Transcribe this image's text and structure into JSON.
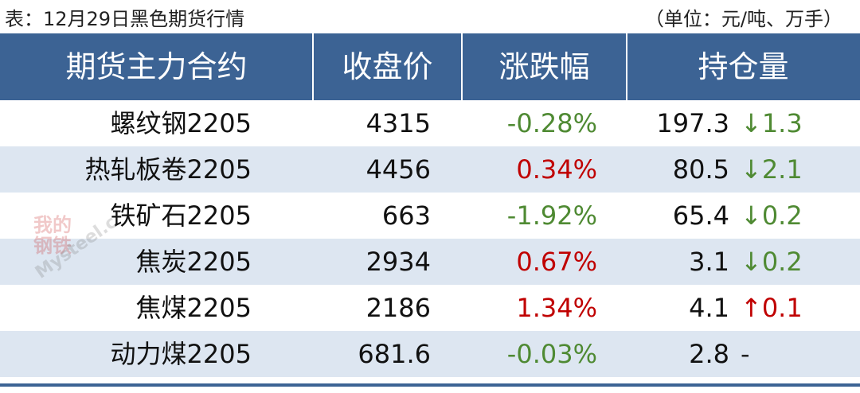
{
  "caption": {
    "title": "表：12月29日黑色期货行情",
    "unit": "（单位：元/吨、万手）"
  },
  "watermark": {
    "stamp": "我的钢铁",
    "site": "Mysteel.c"
  },
  "table": {
    "columns": [
      "期货主力合约",
      "收盘价",
      "涨跌幅",
      "持仓量"
    ],
    "rows": [
      {
        "name": "螺纹钢2205",
        "price": "4315",
        "change": "-0.28%",
        "change_color": "#4f8a33",
        "oi": "197.3",
        "oi_delta": "↓1.3",
        "oi_delta_color": "#4f8a33"
      },
      {
        "name": "热轧板卷2205",
        "price": "4456",
        "change": "0.34%",
        "change_color": "#c00000",
        "oi": "80.5",
        "oi_delta": "↓2.1",
        "oi_delta_color": "#4f8a33"
      },
      {
        "name": "铁矿石2205",
        "price": "663",
        "change": "-1.92%",
        "change_color": "#4f8a33",
        "oi": "65.4",
        "oi_delta": "↓0.2",
        "oi_delta_color": "#4f8a33"
      },
      {
        "name": "焦炭2205",
        "price": "2934",
        "change": "0.67%",
        "change_color": "#c00000",
        "oi": "3.1",
        "oi_delta": "↓0.2",
        "oi_delta_color": "#4f8a33"
      },
      {
        "name": "焦煤2205",
        "price": "2186",
        "change": "1.34%",
        "change_color": "#c00000",
        "oi": "4.1",
        "oi_delta": "↑0.1",
        "oi_delta_color": "#c00000"
      },
      {
        "name": "动力煤2205",
        "price": "681.6",
        "change": "-0.03%",
        "change_color": "#4f8a33",
        "oi": "2.8",
        "oi_delta": "-",
        "oi_delta_color": "#222222"
      }
    ]
  }
}
